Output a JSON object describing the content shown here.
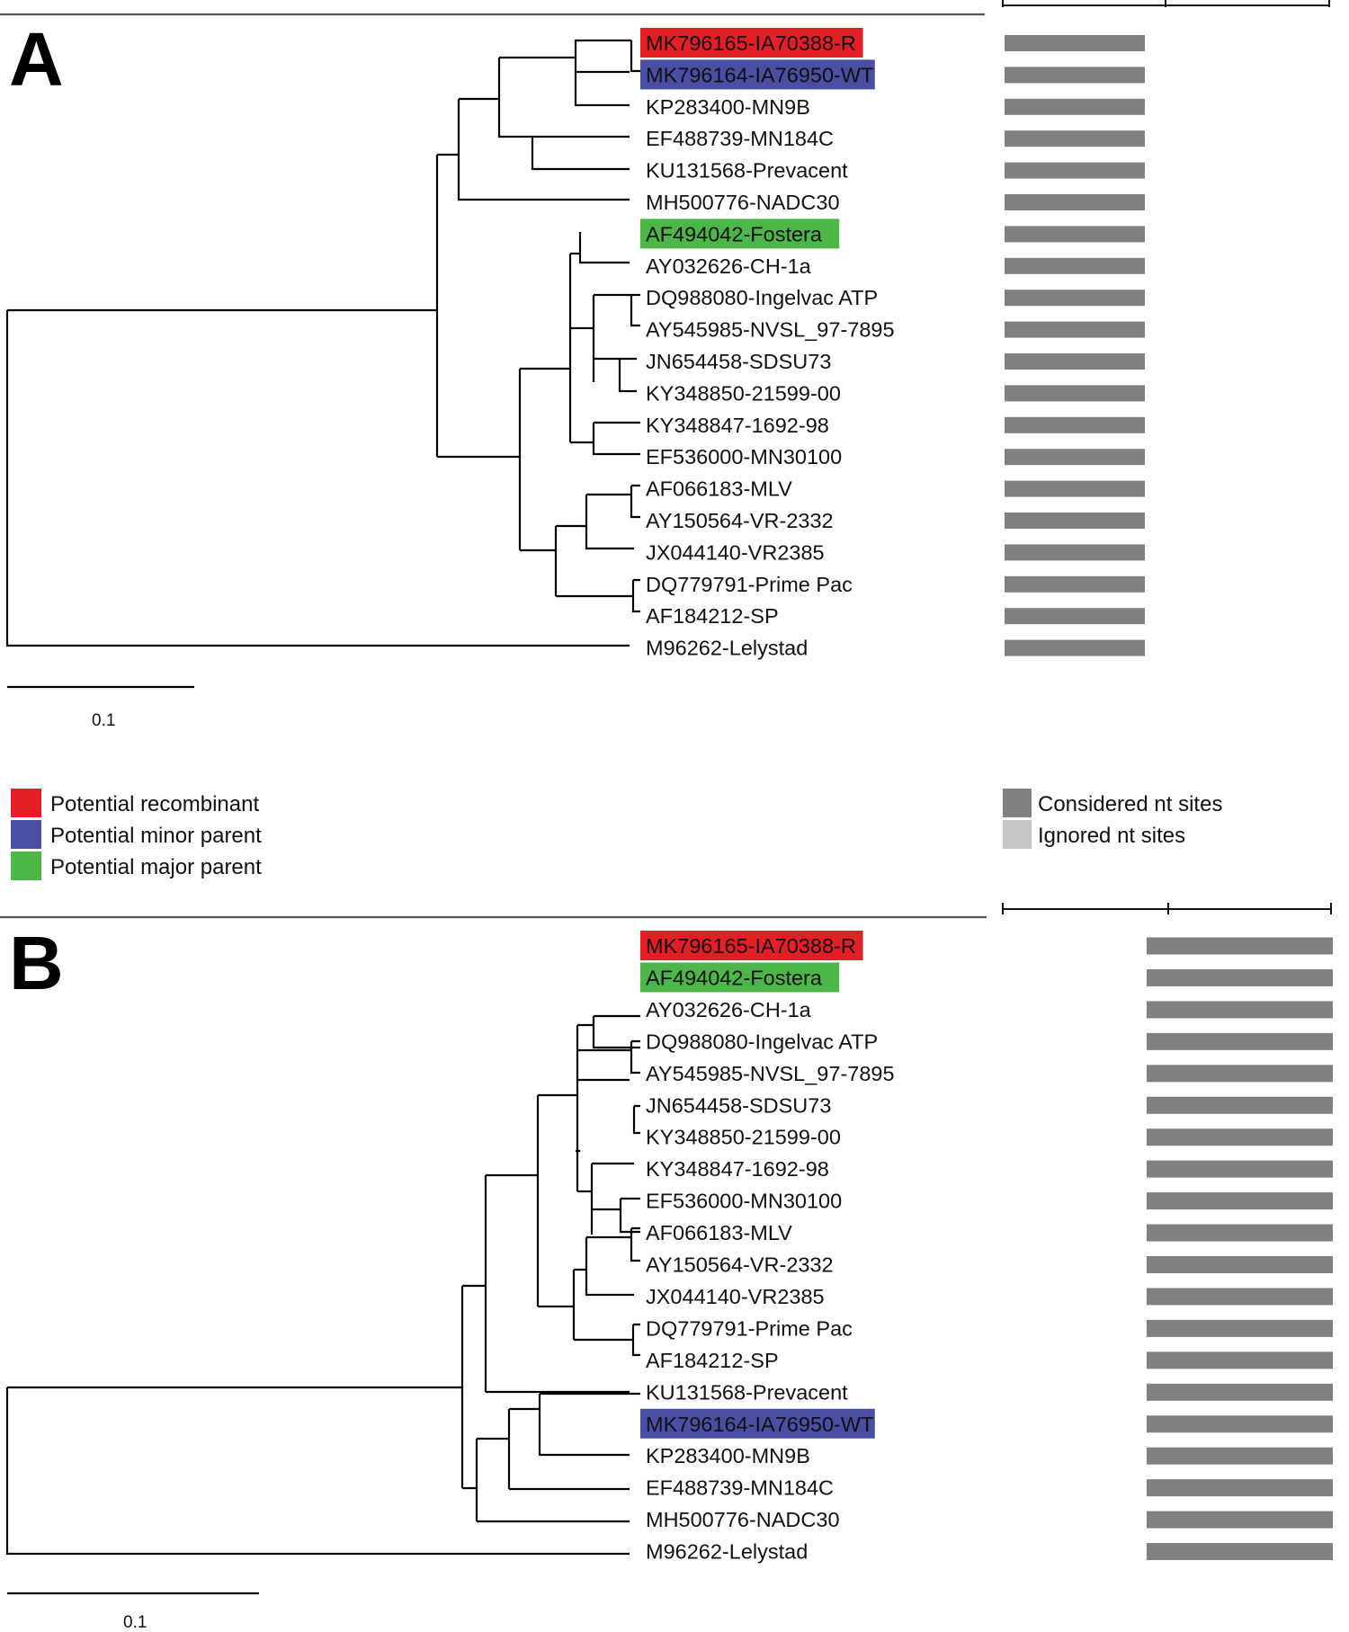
{
  "panels": [
    {
      "letter": "A",
      "scale_label": "0.1",
      "leaves": [
        {
          "label": "MK796165-IA70388-R",
          "highlight": "recombinant"
        },
        {
          "label": "MK796164-IA76950-WT",
          "highlight": "minor"
        },
        {
          "label": "KP283400-MN9B",
          "highlight": null
        },
        {
          "label": "EF488739-MN184C",
          "highlight": null
        },
        {
          "label": "KU131568-Prevacent",
          "highlight": null
        },
        {
          "label": "MH500776-NADC30",
          "highlight": null
        },
        {
          "label": "AF494042-Fostera",
          "highlight": "major"
        },
        {
          "label": "AY032626-CH-1a",
          "highlight": null
        },
        {
          "label": "DQ988080-Ingelvac ATP",
          "highlight": null
        },
        {
          "label": "AY545985-NVSL_97-7895",
          "highlight": null
        },
        {
          "label": "JN654458-SDSU73",
          "highlight": null
        },
        {
          "label": "KY348850-21599-00",
          "highlight": null
        },
        {
          "label": "KY348847-1692-98",
          "highlight": null
        },
        {
          "label": "EF536000-MN30100",
          "highlight": null
        },
        {
          "label": "AF066183-MLV",
          "highlight": null
        },
        {
          "label": "AY150564-VR-2332",
          "highlight": null
        },
        {
          "label": "JX044140-VR2385",
          "highlight": null
        },
        {
          "label": "DQ779791-Prime Pac",
          "highlight": null
        },
        {
          "label": "AF184212-SP",
          "highlight": null
        },
        {
          "label": "M96262-Lelystad",
          "highlight": null
        }
      ]
    },
    {
      "letter": "B",
      "scale_label": "0.1",
      "leaves": [
        {
          "label": "MK796165-IA70388-R",
          "highlight": "recombinant"
        },
        {
          "label": "AF494042-Fostera",
          "highlight": "major"
        },
        {
          "label": "AY032626-CH-1a",
          "highlight": null
        },
        {
          "label": "DQ988080-Ingelvac ATP",
          "highlight": null
        },
        {
          "label": "AY545985-NVSL_97-7895",
          "highlight": null
        },
        {
          "label": "JN654458-SDSU73",
          "highlight": null
        },
        {
          "label": "KY348850-21599-00",
          "highlight": null
        },
        {
          "label": "KY348847-1692-98",
          "highlight": null
        },
        {
          "label": "EF536000-MN30100",
          "highlight": null
        },
        {
          "label": "AF066183-MLV",
          "highlight": null
        },
        {
          "label": "AY150564-VR-2332",
          "highlight": null
        },
        {
          "label": "JX044140-VR2385",
          "highlight": null
        },
        {
          "label": "DQ779791-Prime Pac",
          "highlight": null
        },
        {
          "label": "AF184212-SP",
          "highlight": null
        },
        {
          "label": "KU131568-Prevacent",
          "highlight": null
        },
        {
          "label": "MK796164-IA76950-WT",
          "highlight": "minor"
        },
        {
          "label": "KP283400-MN9B",
          "highlight": null
        },
        {
          "label": "EF488739-MN184C",
          "highlight": null
        },
        {
          "label": "MH500776-NADC30",
          "highlight": null
        },
        {
          "label": "M96262-Lelystad",
          "highlight": null
        }
      ]
    }
  ],
  "legend_parents": [
    {
      "label": "Potential recombinant",
      "color": "#e31e24"
    },
    {
      "label": "Potential minor parent",
      "color": "#4a4fa3"
    },
    {
      "label": "Potential major parent",
      "color": "#4cb748"
    }
  ],
  "legend_sites": [
    {
      "label": "Considered nt sites",
      "color": "#808080"
    },
    {
      "label": "Ignored nt sites",
      "color": "#c8c5c5"
    }
  ],
  "colors": {
    "recombinant": "#e31e24",
    "minor": "#4a4fa3",
    "major": "#4cb748",
    "considered": "#808080",
    "ignored": "#c8c5c5"
  }
}
